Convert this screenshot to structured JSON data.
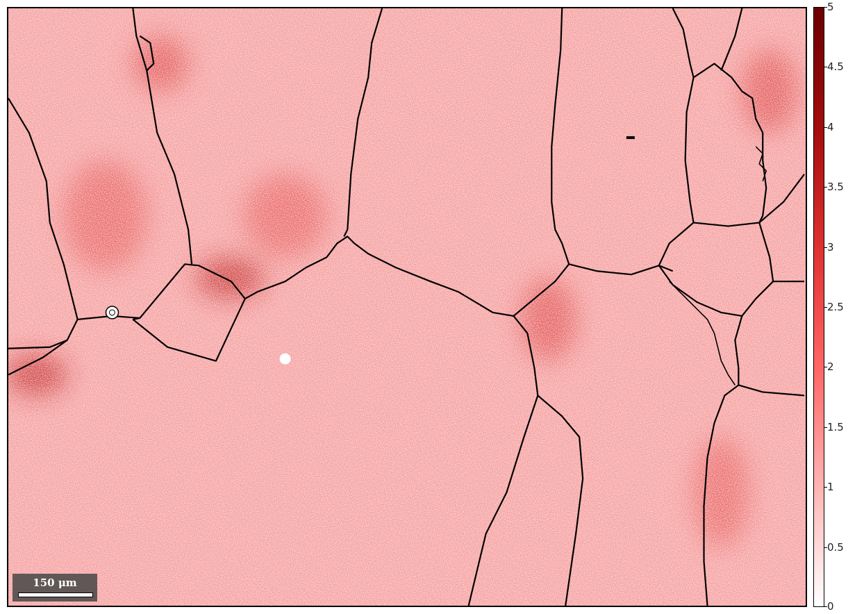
{
  "scalebar": {
    "label": "150 μm"
  },
  "colorbar": {
    "min": 0,
    "max": 5,
    "ticks": [
      {
        "value": 0,
        "label": "0"
      },
      {
        "value": 0.5,
        "label": "0.5"
      },
      {
        "value": 1,
        "label": "1"
      },
      {
        "value": 1.5,
        "label": "1.5"
      },
      {
        "value": 2,
        "label": "2"
      },
      {
        "value": 2.5,
        "label": "2.5"
      },
      {
        "value": 3,
        "label": "3"
      },
      {
        "value": 3.5,
        "label": "3.5"
      },
      {
        "value": 4,
        "label": "4"
      },
      {
        "value": 4.5,
        "label": "4.5"
      },
      {
        "value": 5,
        "label": "5"
      }
    ],
    "colors": [
      "#ffffff",
      "#ffb3b3",
      "#ff6666",
      "#e03030",
      "#a30d0d",
      "#6b0000"
    ]
  },
  "boundary_color": "#000000"
}
